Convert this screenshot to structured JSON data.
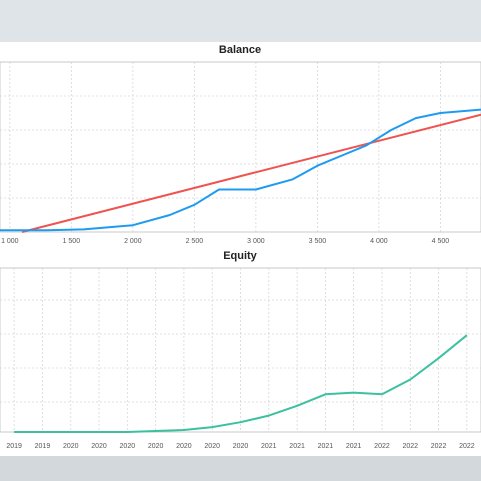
{
  "chart_data": [
    {
      "type": "line",
      "title": "Balance",
      "xlim": [
        920,
        4830
      ],
      "ylim": [
        0,
        100
      ],
      "xticks": [
        {
          "value": 1000,
          "label": "1 000"
        },
        {
          "value": 1500,
          "label": "1 500"
        },
        {
          "value": 2000,
          "label": "2 000"
        },
        {
          "value": 2500,
          "label": "2 500"
        },
        {
          "value": 3000,
          "label": "3 000"
        },
        {
          "value": 3500,
          "label": "3 500"
        },
        {
          "value": 4000,
          "label": "4 000"
        },
        {
          "value": 4500,
          "label": "4 500"
        }
      ],
      "grid": true,
      "series": [
        {
          "color": "#ef5350",
          "x": [
            1100,
            4830
          ],
          "values": [
            0,
            69
          ]
        },
        {
          "color": "#1e9bf0",
          "x": [
            920,
            1300,
            1600,
            2000,
            2300,
            2500,
            2700,
            3000,
            3300,
            3500,
            3700,
            3900,
            4100,
            4300,
            4500,
            4830
          ],
          "values": [
            1,
            1,
            1.5,
            4,
            10,
            16,
            25,
            25,
            31,
            39,
            45,
            51,
            60,
            67,
            70,
            72
          ]
        }
      ]
    },
    {
      "type": "line",
      "title": "Equity",
      "ylim": [
        0,
        100
      ],
      "grid": true,
      "categories": [
        "2019",
        "2019",
        "2020",
        "2020",
        "2020",
        "2020",
        "2020",
        "2020",
        "2020",
        "2021",
        "2021",
        "2021",
        "2021",
        "2022",
        "2022",
        "2022",
        "2022"
      ],
      "series": [
        {
          "color": "#3cc0a0",
          "values": [
            0,
            0,
            0,
            0,
            0,
            0.6,
            1.2,
            3,
            6,
            10,
            16,
            23,
            24,
            23,
            32,
            45,
            59
          ]
        }
      ]
    }
  ]
}
